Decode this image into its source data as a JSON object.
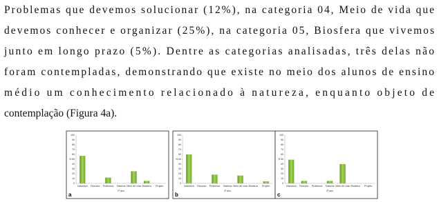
{
  "text_lines": [
    "Problemas que devemos solucionar (12%), na categoria 04, Meio de vida que",
    "devemos conhecer e organizar (25%), na categoria 05, Biosfera que vivemos",
    "junto em longo prazo (5%). Dentre as categorias analisadas, três delas não",
    "foram contempladas, demonstrando que existe no meio dos alunos de ensino",
    "médio um conhecimento relacionado à natureza, enquanto objeto de",
    "contemplação (Figura 4a)."
  ],
  "chart_data": [
    {
      "type": "bar",
      "panel_label": "a",
      "x_label": "1º ano",
      "y_label": "%",
      "categories": [
        "Natureza",
        "Recurso",
        "Problema",
        "Sistema",
        "Meio de vida",
        "Biosfera",
        "Projeto"
      ],
      "values": [
        57,
        0,
        12,
        0,
        25,
        5,
        0
      ],
      "color": "#8cc43c",
      "ylim": [
        0,
        100
      ],
      "yticks": [
        0,
        10,
        20,
        30,
        40,
        50,
        60,
        70,
        80,
        90,
        100
      ]
    },
    {
      "type": "bar",
      "panel_label": "b",
      "x_label": "2º ano",
      "y_label": "%",
      "categories": [
        "Natureza",
        "Recurso",
        "Problema",
        "Sistema",
        "Meio de vida",
        "Biosfera",
        "Projeto"
      ],
      "values": [
        60,
        0,
        18,
        0,
        16,
        0,
        4
      ],
      "color": "#8cc43c",
      "ylim": [
        0,
        100
      ],
      "yticks": [
        0,
        10,
        20,
        30,
        40,
        50,
        60,
        70,
        80,
        90,
        100
      ]
    },
    {
      "type": "bar",
      "panel_label": "c",
      "x_label": "3º ano",
      "y_label": "%",
      "categories": [
        "Natureza",
        "Recurso",
        "Problema",
        "Sistema",
        "Meio de vida",
        "Biosfera",
        "Projeto"
      ],
      "values": [
        49,
        5,
        0,
        5,
        40,
        0,
        0
      ],
      "color": "#8cc43c",
      "ylim": [
        0,
        100
      ],
      "yticks": [
        0,
        10,
        20,
        30,
        40,
        50,
        60,
        70,
        80,
        90,
        100
      ]
    }
  ]
}
